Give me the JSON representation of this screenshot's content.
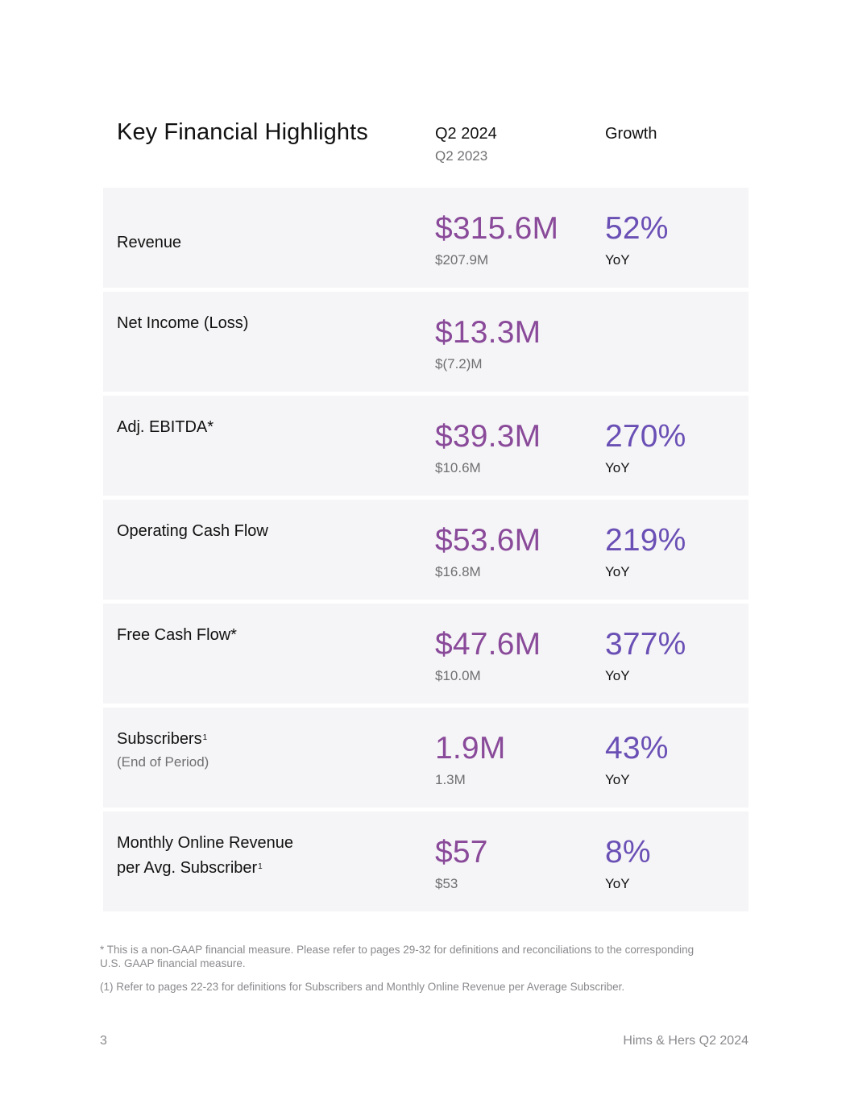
{
  "header": {
    "title": "Key Financial Highlights",
    "period_label": "Q2 2024",
    "prior_period_label": "Q2 2023",
    "growth_label": "Growth"
  },
  "metrics": [
    {
      "label": "Revenue",
      "value": "$315.6M",
      "prior_value": "$207.9M",
      "growth": "52%",
      "growth_basis": "YoY"
    },
    {
      "label": "Net Income (Loss)",
      "value": "$13.3M",
      "prior_value": "$(7.2)M",
      "growth": "",
      "growth_basis": ""
    },
    {
      "label": "Adj. EBITDA*",
      "value": "$39.3M",
      "prior_value": "$10.6M",
      "growth": "270%",
      "growth_basis": "YoY"
    },
    {
      "label": "Operating Cash Flow",
      "value": "$53.6M",
      "prior_value": "$16.8M",
      "growth": "219%",
      "growth_basis": "YoY"
    },
    {
      "label": "Free Cash Flow*",
      "value": "$47.6M",
      "prior_value": "$10.0M",
      "growth": "377%",
      "growth_basis": "YoY"
    },
    {
      "label": "Subscribers",
      "footnote_mark": "1",
      "sublabel": "(End of Period)",
      "value": "1.9M",
      "prior_value": "1.3M",
      "growth": "43%",
      "growth_basis": "YoY"
    },
    {
      "label_line1": "Monthly Online Revenue",
      "label_line2": "per Avg. Subscriber",
      "footnote_mark": "1",
      "value": "$57",
      "prior_value": "$53",
      "growth": "8%",
      "growth_basis": "YoY"
    }
  ],
  "footnotes": {
    "non_gaap": "* This is a non-GAAP financial measure. Please refer to pages 29-32 for definitions and reconciliations to the corresponding U.S. GAAP financial measure.",
    "definitions": "(1) Refer to pages 22-23 for definitions for Subscribers and Monthly Online Revenue per Average Subscriber."
  },
  "footer": {
    "page_number": "3",
    "running_title": "Hims & Hers Q2 2024"
  },
  "colors": {
    "value_accent": "#8a4a9a",
    "growth_accent": "#6a4fb5",
    "row_background": "#f5f5f7",
    "muted_text": "#6f6f72"
  }
}
